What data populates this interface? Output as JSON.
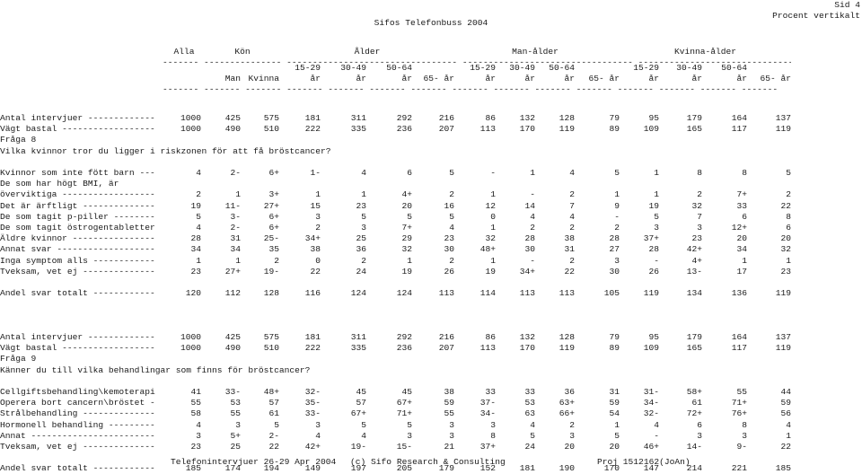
{
  "header": {
    "title": "Sifos Telefonbuss 2004",
    "page": "Sid 4",
    "subtitle": "Procent vertikalt"
  },
  "groups": [
    "Alla",
    "Kön",
    "Ålder",
    "Man-ålder",
    "Kvinna-ålder"
  ],
  "dash_line": "------- --------------- --------------------------------- --------------------------------- -----------------------------------------",
  "sub_top": [
    "15-29",
    "30-49",
    "50-64",
    "15-29",
    "30-49",
    "50-64",
    "15-29",
    "30-49",
    "50-64"
  ],
  "sub_bottom": [
    "Man",
    "Kvinna",
    "år",
    "år",
    "år",
    "65- år",
    "år",
    "år",
    "år",
    "65- år",
    "år",
    "år",
    "år",
    "65- år"
  ],
  "col_dash_line": "------- ------- ------- ------- ------- ------- ------- ------- ------- ------- ------- ------- ------- ------- -------",
  "sections": [
    {
      "type": "row",
      "label": "Antal intervjuer -------------",
      "values": [
        "1000",
        "425",
        "575",
        "181",
        "311",
        "292",
        "216",
        "86",
        "132",
        "128",
        "79",
        "95",
        "179",
        "164",
        "137"
      ]
    },
    {
      "type": "row",
      "label": "Vägt bastal ------------------",
      "values": [
        "1000",
        "490",
        "510",
        "222",
        "335",
        "236",
        "207",
        "113",
        "170",
        "119",
        "89",
        "109",
        "165",
        "117",
        "119"
      ]
    },
    {
      "type": "text",
      "label": "Fråga 8"
    },
    {
      "type": "text",
      "label": "Vilka kvinnor tror du ligger i riskzonen för att få bröstcancer?"
    },
    {
      "type": "blank"
    },
    {
      "type": "row",
      "label": "Kvinnor som inte fött barn ---",
      "values": [
        "4",
        "2-",
        "6+",
        "1-",
        "4",
        "6",
        "5",
        "-",
        "1",
        "4",
        "5",
        "1",
        "8",
        "8",
        "5"
      ]
    },
    {
      "type": "text",
      "label": "De som har högt BMI, är"
    },
    {
      "type": "row",
      "label": "överviktiga ------------------",
      "values": [
        "2",
        "1",
        "3+",
        "1",
        "1",
        "4+",
        "2",
        "1",
        "-",
        "2",
        "1",
        "1",
        "2",
        "7+",
        "2"
      ]
    },
    {
      "type": "row",
      "label": "Det är ärftligt --------------",
      "values": [
        "19",
        "11-",
        "27+",
        "15",
        "23",
        "20",
        "16",
        "12",
        "14",
        "7",
        "9",
        "19",
        "32",
        "33",
        "22"
      ]
    },
    {
      "type": "row",
      "label": "De som tagit p-piller --------",
      "values": [
        "5",
        "3-",
        "6+",
        "3",
        "5",
        "5",
        "5",
        "0",
        "4",
        "4",
        "-",
        "5",
        "7",
        "6",
        "8"
      ]
    },
    {
      "type": "row",
      "label": "De som tagit östrogentabletter",
      "values": [
        "4",
        "2-",
        "6+",
        "2",
        "3",
        "7+",
        "4",
        "1",
        "2",
        "2",
        "2",
        "3",
        "3",
        "12+",
        "6"
      ]
    },
    {
      "type": "row",
      "label": "Äldre kvinnor ----------------",
      "values": [
        "28",
        "31",
        "25-",
        "34+",
        "25",
        "29",
        "23",
        "32",
        "28",
        "38",
        "28",
        "37+",
        "23",
        "20",
        "20"
      ]
    },
    {
      "type": "row",
      "label": "Annat svar -------------------",
      "values": [
        "34",
        "34",
        "35",
        "38",
        "36",
        "32",
        "30",
        "48+",
        "30",
        "31",
        "27",
        "28",
        "42+",
        "34",
        "32"
      ]
    },
    {
      "type": "row",
      "label": "Inga symptom alls ------------",
      "values": [
        "1",
        "1",
        "2",
        "0",
        "2",
        "1",
        "2",
        "1",
        "-",
        "2",
        "3",
        "-",
        "4+",
        "1",
        "1"
      ]
    },
    {
      "type": "row",
      "label": "Tveksam, vet ej --------------",
      "values": [
        "23",
        "27+",
        "19-",
        "22",
        "24",
        "19",
        "26",
        "19",
        "34+",
        "22",
        "30",
        "26",
        "13-",
        "17",
        "23"
      ]
    },
    {
      "type": "blank"
    },
    {
      "type": "row",
      "label": "Andel svar totalt ------------",
      "values": [
        "120",
        "112",
        "128",
        "116",
        "124",
        "124",
        "113",
        "114",
        "113",
        "113",
        "105",
        "119",
        "134",
        "136",
        "119"
      ]
    },
    {
      "type": "blank"
    },
    {
      "type": "blank"
    },
    {
      "type": "blank"
    },
    {
      "type": "row",
      "label": "Antal intervjuer -------------",
      "values": [
        "1000",
        "425",
        "575",
        "181",
        "311",
        "292",
        "216",
        "86",
        "132",
        "128",
        "79",
        "95",
        "179",
        "164",
        "137"
      ]
    },
    {
      "type": "row",
      "label": "Vägt bastal ------------------",
      "values": [
        "1000",
        "490",
        "510",
        "222",
        "335",
        "236",
        "207",
        "113",
        "170",
        "119",
        "89",
        "109",
        "165",
        "117",
        "119"
      ]
    },
    {
      "type": "text",
      "label": "Fråga 9"
    },
    {
      "type": "text",
      "label": "Känner du till vilka behandlingar som finns för bröstcancer?"
    },
    {
      "type": "blank"
    },
    {
      "type": "row",
      "label": "Cellgiftsbehandling\\kemoterapi",
      "values": [
        "41",
        "33-",
        "48+",
        "32-",
        "45",
        "45",
        "38",
        "33",
        "33",
        "36",
        "31",
        "31-",
        "58+",
        "55",
        "44"
      ]
    },
    {
      "type": "row",
      "label": "Operera bort cancern\\bröstet -",
      "values": [
        "55",
        "53",
        "57",
        "35-",
        "57",
        "67+",
        "59",
        "37-",
        "53",
        "63+",
        "59",
        "34-",
        "61",
        "71+",
        "59"
      ]
    },
    {
      "type": "row",
      "label": "Strålbehandling --------------",
      "values": [
        "58",
        "55",
        "61",
        "33-",
        "67+",
        "71+",
        "55",
        "34-",
        "63",
        "66+",
        "54",
        "32-",
        "72+",
        "76+",
        "56"
      ]
    },
    {
      "type": "row",
      "label": "Hormonell behandling ---------",
      "values": [
        "4",
        "3",
        "5",
        "3",
        "5",
        "5",
        "3",
        "3",
        "4",
        "2",
        "1",
        "4",
        "6",
        "8",
        "4"
      ]
    },
    {
      "type": "row",
      "label": "Annat ------------------------",
      "values": [
        "3",
        "5+",
        "2-",
        "4",
        "4",
        "3",
        "3",
        "8",
        "5",
        "3",
        "5",
        "-",
        "3",
        "3",
        "1"
      ]
    },
    {
      "type": "row",
      "label": "Tveksam, vet ej --------------",
      "values": [
        "23",
        "25",
        "22",
        "42+",
        "19-",
        "15-",
        "21",
        "37+",
        "24",
        "20",
        "20",
        "46+",
        "14-",
        "9-",
        "22"
      ]
    },
    {
      "type": "blank"
    },
    {
      "type": "row",
      "label": "Andel svar totalt ------------",
      "values": [
        "185",
        "174",
        "194",
        "149",
        "197",
        "205",
        "179",
        "152",
        "181",
        "190",
        "170",
        "147",
        "214",
        "221",
        "185"
      ]
    }
  ],
  "footer": {
    "left": "Telefonintervjuer 26-29 Apr 2004",
    "center": "(c) Sifo Research & Consulting",
    "right": "Proj 1512162(JoAn)"
  }
}
